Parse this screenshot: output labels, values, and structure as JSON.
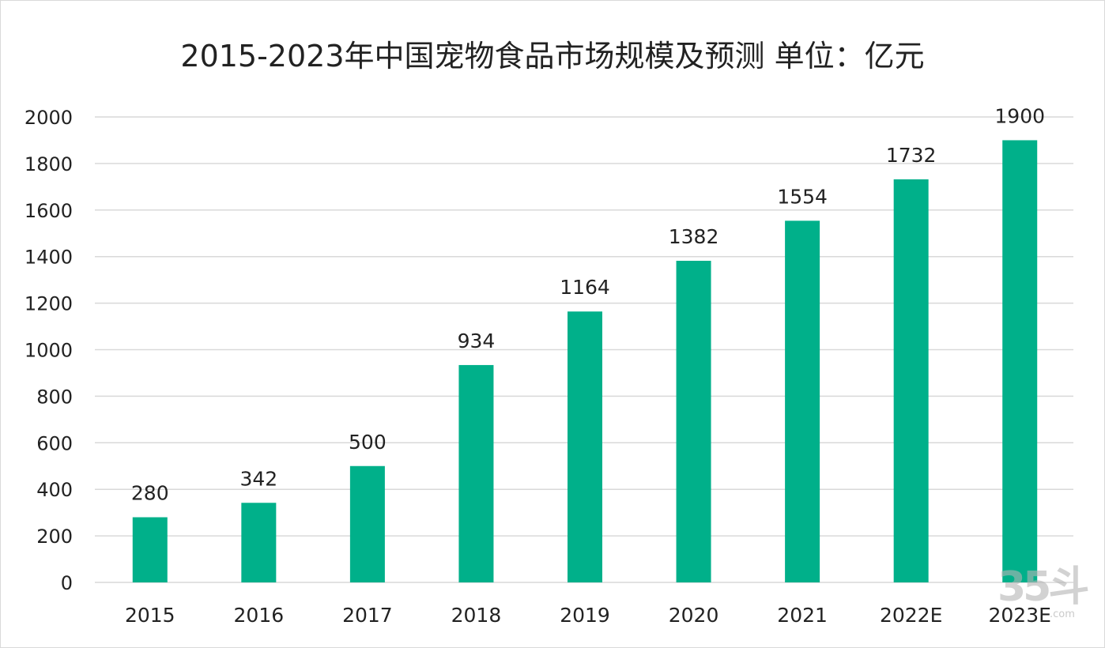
{
  "chart_data": {
    "type": "bar",
    "title": "2015-2023年中国宠物食品市场规模及预测   单位：亿元",
    "categories": [
      "2015",
      "2016",
      "2017",
      "2018",
      "2019",
      "2020",
      "2021",
      "2022E",
      "2023E"
    ],
    "values": [
      280,
      342,
      500,
      934,
      1164,
      1382,
      1554,
      1732,
      1900
    ],
    "xlabel": "",
    "ylabel": "",
    "ylim": [
      0,
      2000
    ],
    "yticks": [
      0,
      200,
      400,
      600,
      800,
      1000,
      1200,
      1400,
      1600,
      1800,
      2000
    ],
    "grid": true,
    "legend": "none",
    "bar_color": "#00b08a"
  },
  "watermark": {
    "main": "35斗",
    "suffix": ".com"
  }
}
